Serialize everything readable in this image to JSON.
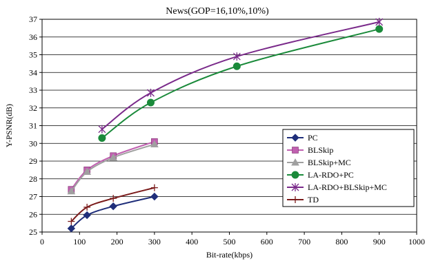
{
  "chart_data": {
    "type": "line",
    "title": "News(GOP=16,10%,10%)",
    "xlabel": "Bit-rate(kbps)",
    "ylabel": "Y-PSNR(dB)",
    "xlim": [
      0,
      1000
    ],
    "ylim": [
      25,
      37
    ],
    "xticks": [
      0,
      100,
      200,
      300,
      400,
      500,
      600,
      700,
      800,
      900,
      1000
    ],
    "yticks": [
      25,
      26,
      27,
      28,
      29,
      30,
      31,
      32,
      33,
      34,
      35,
      36,
      37
    ],
    "grid": "horizontal",
    "legend_position": "right",
    "series": [
      {
        "name": "PC",
        "color": "#1f2e7a",
        "marker": "diamond",
        "x": [
          78,
          120,
          190,
          300
        ],
        "y": [
          25.2,
          25.95,
          26.45,
          27.0
        ]
      },
      {
        "name": "BLSkip",
        "color": "#c060b0",
        "marker": "square",
        "x": [
          78,
          120,
          190,
          300
        ],
        "y": [
          27.4,
          28.5,
          29.3,
          30.1
        ]
      },
      {
        "name": "BLSkip+MC",
        "color": "#a0a0a0",
        "marker": "triangle",
        "x": [
          78,
          120,
          190,
          300
        ],
        "y": [
          27.3,
          28.4,
          29.2,
          29.95
        ]
      },
      {
        "name": "LA-RDO+PC",
        "color": "#1a8a3a",
        "marker": "circle",
        "x": [
          160,
          290,
          520,
          900
        ],
        "y": [
          30.3,
          32.3,
          34.35,
          36.45
        ]
      },
      {
        "name": "LA-RDO+BLSkip+MC",
        "color": "#7a2a8a",
        "marker": "asterisk",
        "x": [
          160,
          290,
          520,
          900
        ],
        "y": [
          30.8,
          32.85,
          34.9,
          36.85
        ]
      },
      {
        "name": "TD",
        "color": "#7a1a1a",
        "marker": "plus",
        "x": [
          78,
          120,
          190,
          300
        ],
        "y": [
          25.6,
          26.4,
          26.9,
          27.5
        ]
      }
    ]
  }
}
